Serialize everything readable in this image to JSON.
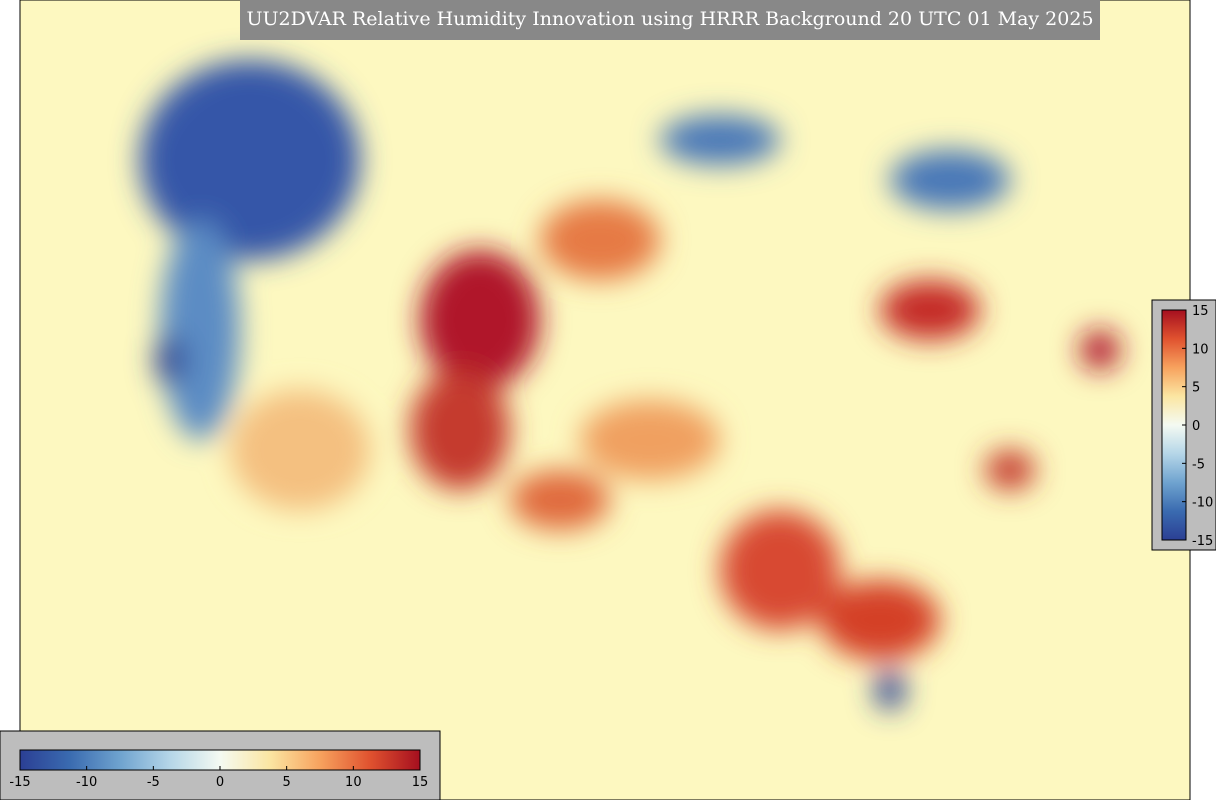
{
  "title": "UU2DVAR Relative Humidity Innovation using HRRR Background 20 UTC 01 May 2025",
  "colorbars": [
    {
      "orientation": "horizontal",
      "lim": [
        -15,
        15
      ],
      "ticks": [
        -15,
        -10,
        -5,
        0,
        5,
        10,
        15
      ],
      "colors": [
        "#2b3f94",
        "#3a6bb0",
        "#6fa3cf",
        "#b5d6e8",
        "#f4faf2",
        "#fbe6a2",
        "#f7a25e",
        "#e0522f",
        "#a50f1f"
      ]
    },
    {
      "orientation": "vertical",
      "lim": [
        -15,
        15
      ],
      "ticks": [
        -15,
        -10,
        -5,
        0,
        5,
        10,
        15
      ],
      "colors": [
        "#2b3f94",
        "#3a6bb0",
        "#6fa3cf",
        "#b5d6e8",
        "#f4faf2",
        "#fbe6a2",
        "#f7a25e",
        "#e0522f",
        "#a50f1f"
      ]
    }
  ]
}
